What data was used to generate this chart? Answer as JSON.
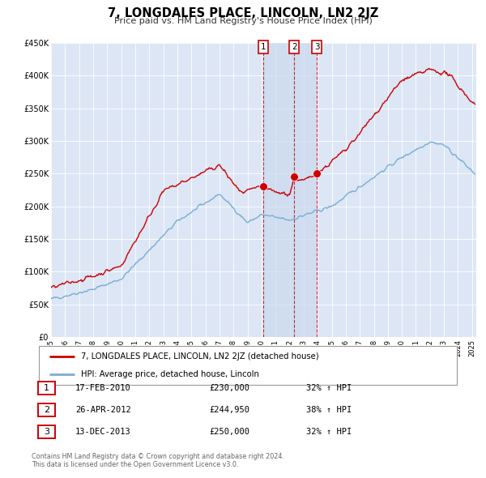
{
  "title": "7, LONGDALES PLACE, LINCOLN, LN2 2JZ",
  "subtitle": "Price paid vs. HM Land Registry's House Price Index (HPI)",
  "legend_line1": "7, LONGDALES PLACE, LINCOLN, LN2 2JZ (detached house)",
  "legend_line2": "HPI: Average price, detached house, Lincoln",
  "red_color": "#cc0000",
  "blue_color": "#7aadd4",
  "bg_color": "#dce6f5",
  "shade_color": "#ccd9ee",
  "transactions": [
    {
      "num": 1,
      "date": "17-FEB-2010",
      "date_val": 2010.12,
      "price": 230000,
      "pct": "32%",
      "dir": "↑"
    },
    {
      "num": 2,
      "date": "26-APR-2012",
      "date_val": 2012.32,
      "price": 244950,
      "pct": "38%",
      "dir": "↑"
    },
    {
      "num": 3,
      "date": "13-DEC-2013",
      "date_val": 2013.95,
      "price": 250000,
      "pct": "32%",
      "dir": "↑"
    }
  ],
  "footer_line1": "Contains HM Land Registry data © Crown copyright and database right 2024.",
  "footer_line2": "This data is licensed under the Open Government Licence v3.0.",
  "ylim": [
    0,
    450000
  ],
  "xlim_start": 1995.0,
  "xlim_end": 2025.3,
  "noise_seed": 42
}
